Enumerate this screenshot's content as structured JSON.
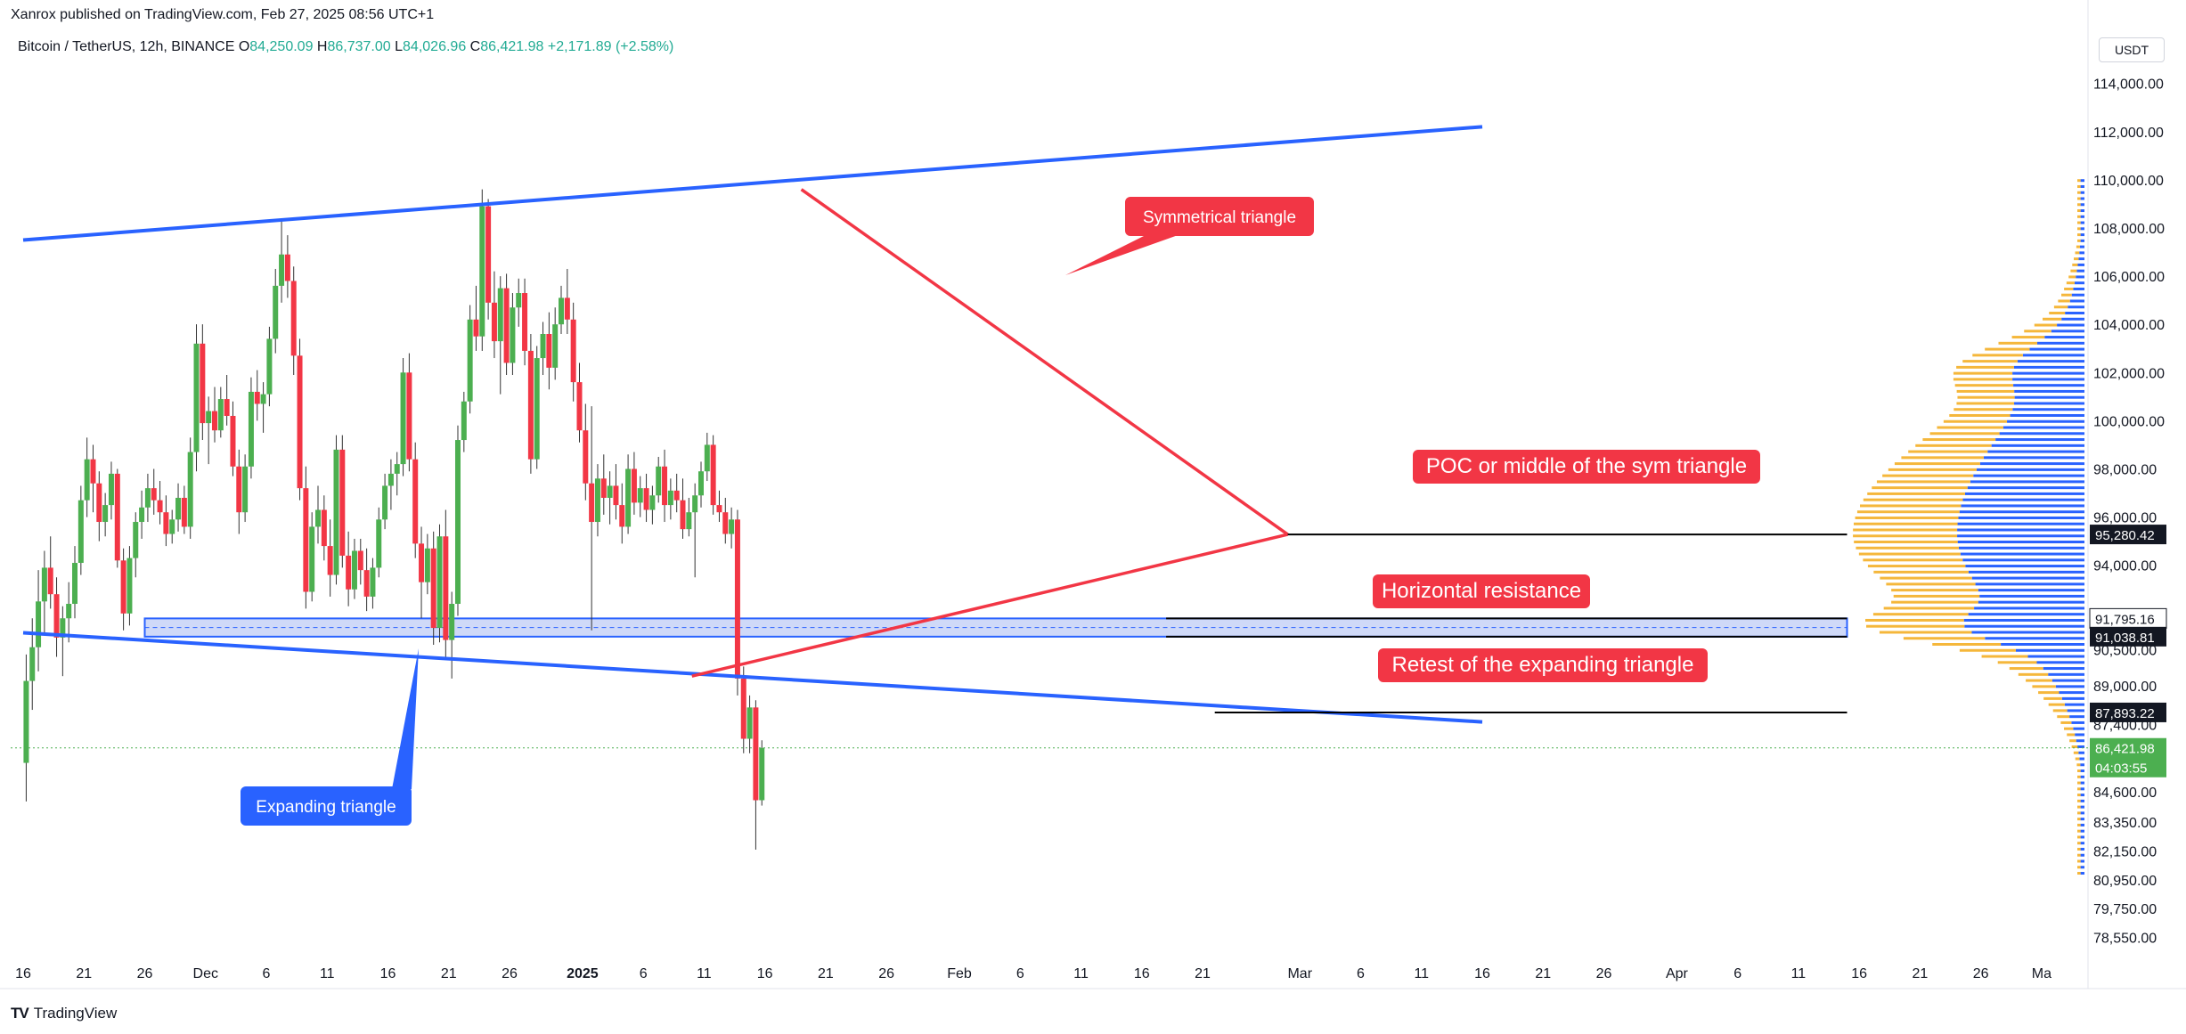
{
  "header": {
    "published_by": "Xanrox published on TradingView.com, Feb 27, 2025 08:56 UTC+1",
    "symbol": "Bitcoin / TetherUS, 12h, BINANCE",
    "open_label": "O",
    "open": "84,250.09",
    "high_label": "H",
    "high": "86,737.00",
    "low_label": "L",
    "low": "84,026.96",
    "close_label": "C",
    "close": "86,421.98",
    "change": "+2,171.89 (+2.58%)",
    "currency": "USDT"
  },
  "brand": {
    "logo": "TV",
    "name": "TradingView"
  },
  "colors": {
    "up": "#22ab94",
    "candle_up": "#4caf50",
    "candle_down": "#f23645",
    "trendline_blue": "#2962ff",
    "triangle_red": "#f23645",
    "zone_fill": "#b6c4f5",
    "volume_up": "#2962ff",
    "volume_down": "#f5b73b"
  },
  "chart_data": {
    "type": "candlestick",
    "ylim": [
      77800,
      114800
    ],
    "y_ticks": [
      "114,000.00",
      "112,000.00",
      "110,000.00",
      "108,000.00",
      "106,000.00",
      "104,000.00",
      "102,000.00",
      "100,000.00",
      "98,000.00",
      "96,000.00",
      "94,000.00",
      "90,500.00",
      "89,000.00",
      "87,400.00",
      "84,600.00",
      "83,350.00",
      "82,150.00",
      "80,950.00",
      "79,750.00",
      "78,550.00"
    ],
    "y_tick_values": [
      114000,
      112000,
      110000,
      108000,
      106000,
      104000,
      102000,
      100000,
      98000,
      96000,
      94000,
      90500,
      89000,
      87400,
      84600,
      83350,
      82150,
      80950,
      79750,
      78550
    ],
    "x_ticks": [
      "16",
      "21",
      "26",
      "Dec",
      "6",
      "11",
      "16",
      "21",
      "26",
      "2025",
      "6",
      "11",
      "16",
      "21",
      "26",
      "Feb",
      "6",
      "11",
      "16",
      "21",
      "Mar",
      "6",
      "11",
      "16",
      "21",
      "26",
      "Apr",
      "6",
      "11",
      "16",
      "21",
      "26",
      "Ma"
    ],
    "x_tick_days": [
      0,
      5,
      10,
      15,
      20,
      25,
      30,
      35,
      40,
      46,
      51,
      56,
      61,
      66,
      71,
      77,
      82,
      87,
      92,
      97,
      105,
      110,
      115,
      120,
      125,
      130,
      136,
      141,
      146,
      151,
      156,
      161,
      166
    ],
    "x_start_date": "Nov 16, 2024",
    "candles": [
      [
        85800,
        90300,
        84200,
        89200
      ],
      [
        89200,
        91800,
        88000,
        90600
      ],
      [
        90600,
        93800,
        89600,
        92500
      ],
      [
        92500,
        94600,
        91200,
        93900
      ],
      [
        93900,
        95200,
        92200,
        92800
      ],
      [
        92800,
        93500,
        90200,
        91000
      ],
      [
        91000,
        92300,
        89400,
        91800
      ],
      [
        91800,
        93300,
        90800,
        92400
      ],
      [
        92400,
        94800,
        91800,
        94100
      ],
      [
        94100,
        97300,
        93600,
        96700
      ],
      [
        96700,
        99300,
        96000,
        98400
      ],
      [
        98400,
        99000,
        96200,
        97400
      ],
      [
        97400,
        97900,
        95000,
        95800
      ],
      [
        95800,
        97000,
        95200,
        96500
      ],
      [
        96500,
        98300,
        95900,
        97800
      ],
      [
        97800,
        98000,
        93900,
        94200
      ],
      [
        94200,
        94700,
        91300,
        92000
      ],
      [
        92000,
        94800,
        91500,
        94300
      ],
      [
        94300,
        96200,
        93500,
        95800
      ],
      [
        95800,
        97100,
        95100,
        96400
      ],
      [
        96400,
        97800,
        95800,
        97200
      ],
      [
        97200,
        98000,
        96100,
        96700
      ],
      [
        96700,
        97500,
        95700,
        96200
      ],
      [
        96200,
        96900,
        94800,
        95300
      ],
      [
        95300,
        96300,
        94900,
        95900
      ],
      [
        95900,
        97400,
        95400,
        96800
      ],
      [
        96800,
        97300,
        95300,
        95600
      ],
      [
        95600,
        99300,
        95100,
        98700
      ],
      [
        98700,
        104000,
        97900,
        103200
      ],
      [
        103200,
        104000,
        99200,
        99900
      ],
      [
        99900,
        101000,
        98200,
        100400
      ],
      [
        100400,
        101400,
        99100,
        99600
      ],
      [
        99600,
        101400,
        99300,
        100900
      ],
      [
        100900,
        101900,
        99800,
        100200
      ],
      [
        100200,
        100800,
        97700,
        98100
      ],
      [
        98100,
        98800,
        95300,
        96200
      ],
      [
        96200,
        98600,
        95800,
        98100
      ],
      [
        98100,
        101800,
        97600,
        101200
      ],
      [
        101200,
        102100,
        100000,
        100700
      ],
      [
        100700,
        101600,
        99500,
        101100
      ],
      [
        101100,
        103900,
        100600,
        103400
      ],
      [
        103400,
        106300,
        102800,
        105600
      ],
      [
        105600,
        108300,
        104900,
        106900
      ],
      [
        106900,
        107700,
        105100,
        105800
      ],
      [
        105800,
        106400,
        101900,
        102700
      ],
      [
        102700,
        103400,
        96700,
        97200
      ],
      [
        97200,
        98100,
        92200,
        92900
      ],
      [
        92900,
        96200,
        92500,
        95600
      ],
      [
        95600,
        97300,
        94900,
        96300
      ],
      [
        96300,
        96900,
        94200,
        94800
      ],
      [
        94800,
        95900,
        92700,
        93600
      ],
      [
        93600,
        99400,
        93200,
        98800
      ],
      [
        98800,
        99400,
        93900,
        94400
      ],
      [
        94400,
        95400,
        92300,
        93000
      ],
      [
        93000,
        95100,
        92600,
        94600
      ],
      [
        94600,
        95100,
        93200,
        93800
      ],
      [
        93800,
        94700,
        92100,
        92700
      ],
      [
        92700,
        94300,
        92200,
        93900
      ],
      [
        93900,
        96400,
        93500,
        95900
      ],
      [
        95900,
        97800,
        95500,
        97300
      ],
      [
        97300,
        98400,
        96300,
        97800
      ],
      [
        97800,
        98700,
        96900,
        98200
      ],
      [
        98200,
        102600,
        97700,
        102000
      ],
      [
        102000,
        102800,
        97900,
        98400
      ],
      [
        98400,
        99100,
        94300,
        94900
      ],
      [
        94900,
        95600,
        91800,
        93300
      ],
      [
        93300,
        95300,
        92800,
        94700
      ],
      [
        94700,
        95400,
        90700,
        91400
      ],
      [
        91400,
        95700,
        90800,
        95200
      ],
      [
        95200,
        96300,
        90200,
        90900
      ],
      [
        90900,
        92900,
        89300,
        92400
      ],
      [
        92400,
        99800,
        91900,
        99200
      ],
      [
        99200,
        101200,
        98700,
        100800
      ],
      [
        100800,
        104800,
        100300,
        104200
      ],
      [
        104200,
        105600,
        102900,
        103500
      ],
      [
        103500,
        109600,
        102900,
        108900
      ],
      [
        108900,
        109200,
        104200,
        104900
      ],
      [
        104900,
        106200,
        102600,
        103300
      ],
      [
        103300,
        106000,
        101100,
        105500
      ],
      [
        105500,
        106100,
        101900,
        102400
      ],
      [
        102400,
        105300,
        101900,
        104700
      ],
      [
        104700,
        105900,
        103900,
        105300
      ],
      [
        105300,
        105900,
        102300,
        102900
      ],
      [
        102900,
        103600,
        97800,
        98400
      ],
      [
        98400,
        103100,
        98000,
        102600
      ],
      [
        102600,
        104100,
        101900,
        103600
      ],
      [
        103600,
        104500,
        101300,
        102200
      ],
      [
        102200,
        104700,
        101700,
        104000
      ],
      [
        104000,
        105600,
        103600,
        105100
      ],
      [
        105100,
        106300,
        103600,
        104200
      ],
      [
        104200,
        104900,
        100800,
        101600
      ],
      [
        101600,
        102400,
        99100,
        99600
      ],
      [
        99600,
        100700,
        96700,
        97400
      ],
      [
        97400,
        100600,
        91300,
        95800
      ],
      [
        95800,
        98200,
        95200,
        97600
      ],
      [
        97600,
        98600,
        96100,
        96800
      ],
      [
        96800,
        97900,
        95700,
        97300
      ],
      [
        97300,
        98200,
        95900,
        96500
      ],
      [
        96500,
        97400,
        94900,
        95600
      ],
      [
        95600,
        98600,
        95300,
        98000
      ],
      [
        98000,
        98700,
        96100,
        96600
      ],
      [
        96600,
        97700,
        96000,
        97200
      ],
      [
        97200,
        97800,
        95800,
        96300
      ],
      [
        96300,
        97300,
        95700,
        96900
      ],
      [
        96900,
        98500,
        96600,
        98100
      ],
      [
        98100,
        98800,
        95800,
        96500
      ],
      [
        96500,
        97600,
        95900,
        97100
      ],
      [
        97100,
        97800,
        96200,
        96700
      ],
      [
        96700,
        97600,
        95100,
        95500
      ],
      [
        95500,
        96800,
        95200,
        96200
      ],
      [
        96200,
        97400,
        93500,
        96900
      ],
      [
        96900,
        98300,
        96400,
        97900
      ],
      [
        97900,
        99500,
        97500,
        99000
      ],
      [
        99000,
        99400,
        96100,
        96500
      ],
      [
        96500,
        97100,
        95800,
        96200
      ],
      [
        96200,
        96800,
        94900,
        95300
      ],
      [
        95300,
        96400,
        94700,
        95900
      ],
      [
        95900,
        96300,
        88600,
        89300
      ],
      [
        89300,
        89800,
        86200,
        86800
      ],
      [
        86800,
        88600,
        86200,
        88100
      ],
      [
        88100,
        88400,
        82200,
        84250
      ],
      [
        84250,
        86737,
        84027,
        86422
      ]
    ],
    "lines": {
      "expanding_triangle_upper": {
        "start": [
          0,
          107500
        ],
        "end": [
          120,
          112200
        ]
      },
      "expanding_triangle_lower": {
        "start": [
          0,
          91200
        ],
        "end": [
          120,
          87500
        ]
      },
      "symmetrical_triangle_upper": {
        "start": [
          64,
          109600
        ],
        "end": [
          104,
          95280
        ]
      },
      "symmetrical_triangle_lower": {
        "start": [
          55,
          89400
        ],
        "end": [
          104,
          95280
        ]
      },
      "poc_line": {
        "start": [
          104,
          95280
        ],
        "end": [
          150,
          95280
        ]
      },
      "retest_line": {
        "start": [
          98,
          87893
        ],
        "end": [
          150,
          87893
        ]
      },
      "resistance_line": {
        "start": [
          94,
          91038
        ],
        "end": [
          150,
          91038
        ]
      }
    },
    "horizontal_zone": {
      "start_day": 10,
      "end_day": 150,
      "low": 91038,
      "high": 91795
    },
    "price_labels": [
      {
        "value": 95280.42,
        "text": "95,280.42",
        "style": "dark"
      },
      {
        "value": 91795.16,
        "text": "91,795.16",
        "style": "light"
      },
      {
        "value": 91038.81,
        "text": "91,038.81",
        "style": "dark"
      },
      {
        "value": 87893.22,
        "text": "87,893.22",
        "style": "dark"
      },
      {
        "value": 86421.98,
        "text": "86,421.98",
        "style": "green"
      }
    ],
    "countdown": "04:03:55",
    "annotations": [
      {
        "text": "Symmetrical triangle",
        "style": "red-bubble"
      },
      {
        "text": "POC or middle of the sym triangle",
        "style": "red-box"
      },
      {
        "text": "Horizontal resistance",
        "style": "red-box"
      },
      {
        "text": "Retest of the expanding triangle",
        "style": "red-box"
      },
      {
        "text": "Expanding triangle",
        "style": "blue-bubble"
      }
    ]
  }
}
